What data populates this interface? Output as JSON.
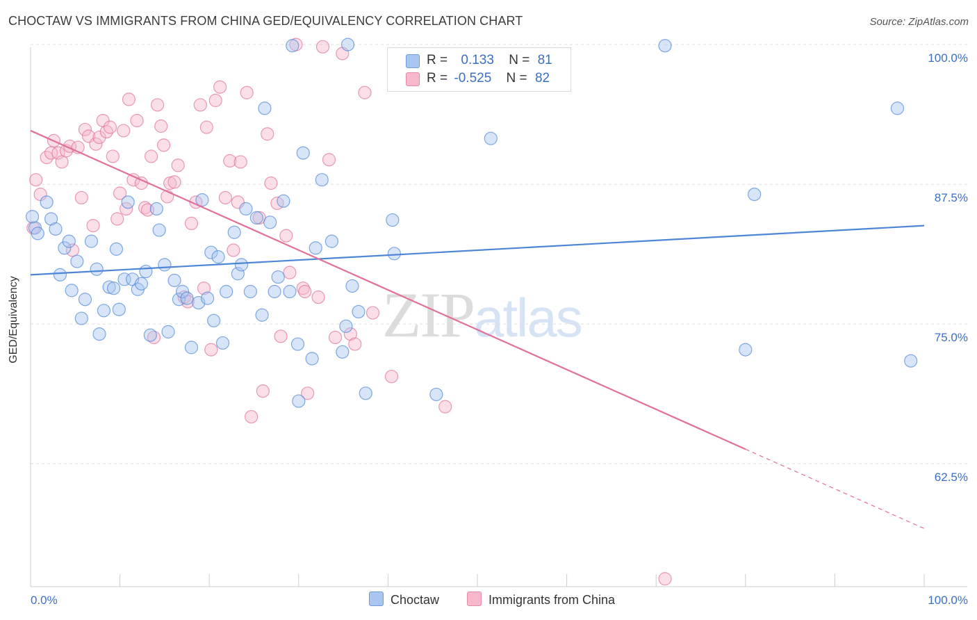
{
  "header": {
    "title": "CHOCTAW VS IMMIGRANTS FROM CHINA GED/EQUIVALENCY CORRELATION CHART",
    "source": "Source: ZipAtlas.com"
  },
  "watermark": {
    "zip": "ZIP",
    "atlas": "atlas"
  },
  "legend": {
    "rows": [
      {
        "r_label": "R =",
        "r_value": "0.133",
        "n_label": "N =",
        "n_value": "81",
        "color": "#a9c6f0"
      },
      {
        "r_label": "R =",
        "r_value": "-0.525",
        "n_label": "N =",
        "n_value": "82",
        "color": "#f7b8cb"
      }
    ]
  },
  "bottom_legend": [
    {
      "label": "Choctaw",
      "color": "#a9c6f0"
    },
    {
      "label": "Immigrants from China",
      "color": "#f7b8cb"
    }
  ],
  "chart_data": {
    "type": "scatter",
    "title": "CHOCTAW VS IMMIGRANTS FROM CHINA GED/EQUIVALENCY CORRELATION CHART",
    "xlabel": "",
    "ylabel": "GED/Equivalency",
    "xlim": [
      0,
      100
    ],
    "ylim": [
      51.5,
      101.5
    ],
    "x_tick_labels": [
      "0.0%",
      "100.0%"
    ],
    "y_ticks": [
      62.5,
      75.0,
      87.5,
      100.0
    ],
    "y_tick_labels": [
      "62.5%",
      "75.0%",
      "87.5%",
      "100.0%"
    ],
    "grid": "horizontal dashed",
    "legend_position": "top-center",
    "series": [
      {
        "name": "Choctaw",
        "color": "#4d86d6",
        "fill": "#a9c6f0",
        "trend": {
          "x": [
            0,
            100
          ],
          "y": [
            79.4,
            83.8
          ],
          "style": "solid"
        },
        "points": [
          [
            0.5,
            83.6
          ],
          [
            0.8,
            83.1
          ],
          [
            1.8,
            85.9
          ],
          [
            2.3,
            84.4
          ],
          [
            2.8,
            83.5
          ],
          [
            3.3,
            79.4
          ],
          [
            3.8,
            81.8
          ],
          [
            4.3,
            82.4
          ],
          [
            4.6,
            78.0
          ],
          [
            5.2,
            80.6
          ],
          [
            5.7,
            75.5
          ],
          [
            6.1,
            77.2
          ],
          [
            6.8,
            82.4
          ],
          [
            7.4,
            79.9
          ],
          [
            7.7,
            74.1
          ],
          [
            8.2,
            76.2
          ],
          [
            8.8,
            78.3
          ],
          [
            9.3,
            78.2
          ],
          [
            9.6,
            81.7
          ],
          [
            9.9,
            76.3
          ],
          [
            10.5,
            79.0
          ],
          [
            10.9,
            85.9
          ],
          [
            11.4,
            79.0
          ],
          [
            12.0,
            78.1
          ],
          [
            12.4,
            78.6
          ],
          [
            12.9,
            79.7
          ],
          [
            13.4,
            74.0
          ],
          [
            14.1,
            85.3
          ],
          [
            14.4,
            83.4
          ],
          [
            15.0,
            80.3
          ],
          [
            15.4,
            74.3
          ],
          [
            16.1,
            78.9
          ],
          [
            16.6,
            77.2
          ],
          [
            17.0,
            77.9
          ],
          [
            17.5,
            77.3
          ],
          [
            18.0,
            72.9
          ],
          [
            18.8,
            76.9
          ],
          [
            19.2,
            86.1
          ],
          [
            19.8,
            77.3
          ],
          [
            20.2,
            81.4
          ],
          [
            20.5,
            75.3
          ],
          [
            21.0,
            81.0
          ],
          [
            21.5,
            73.3
          ],
          [
            21.9,
            77.9
          ],
          [
            22.8,
            83.2
          ],
          [
            23.2,
            79.5
          ],
          [
            23.6,
            80.3
          ],
          [
            24.1,
            85.3
          ],
          [
            24.6,
            77.9
          ],
          [
            25.3,
            84.5
          ],
          [
            25.9,
            75.8
          ],
          [
            26.2,
            94.3
          ],
          [
            26.8,
            84.1
          ],
          [
            27.3,
            77.9
          ],
          [
            27.7,
            79.2
          ],
          [
            28.3,
            86.0
          ],
          [
            29.0,
            77.9
          ],
          [
            29.3,
            99.9
          ],
          [
            29.9,
            73.2
          ],
          [
            30.5,
            90.3
          ],
          [
            31.5,
            71.9
          ],
          [
            31.9,
            81.8
          ],
          [
            32.6,
            87.9
          ],
          [
            33.7,
            82.4
          ],
          [
            34.9,
            72.5
          ],
          [
            35.3,
            74.8
          ],
          [
            36.0,
            78.4
          ],
          [
            36.7,
            76.1
          ],
          [
            37.5,
            68.8
          ],
          [
            40.5,
            84.3
          ],
          [
            40.7,
            81.3
          ],
          [
            45.4,
            68.7
          ],
          [
            51.5,
            91.6
          ],
          [
            71.0,
            99.9
          ],
          [
            80.0,
            72.7
          ],
          [
            81.0,
            86.6
          ],
          [
            97.0,
            94.3
          ],
          [
            98.5,
            71.7
          ],
          [
            0.2,
            84.6
          ],
          [
            30.0,
            68.1
          ],
          [
            35.5,
            100.0
          ]
        ]
      },
      {
        "name": "Immigrants from China",
        "color": "#e0709a",
        "fill": "#f7b8cb",
        "trend": {
          "x": [
            0,
            80
          ],
          "y": [
            92.3,
            63.8
          ],
          "style": "solid"
        },
        "trend_extension": {
          "x": [
            80,
            100
          ],
          "y": [
            63.8,
            56.7
          ],
          "style": "dashed"
        },
        "points": [
          [
            0.3,
            83.6
          ],
          [
            0.6,
            87.9
          ],
          [
            1.1,
            86.6
          ],
          [
            1.8,
            89.9
          ],
          [
            2.3,
            90.3
          ],
          [
            2.6,
            91.4
          ],
          [
            3.1,
            90.3
          ],
          [
            3.5,
            89.5
          ],
          [
            4.0,
            90.5
          ],
          [
            4.4,
            90.9
          ],
          [
            4.7,
            81.6
          ],
          [
            5.3,
            90.8
          ],
          [
            5.7,
            86.3
          ],
          [
            6.1,
            92.4
          ],
          [
            6.5,
            91.8
          ],
          [
            7.0,
            83.8
          ],
          [
            7.3,
            91.1
          ],
          [
            7.7,
            91.7
          ],
          [
            8.1,
            93.2
          ],
          [
            8.5,
            92.2
          ],
          [
            8.9,
            92.6
          ],
          [
            9.2,
            90.0
          ],
          [
            9.7,
            84.4
          ],
          [
            10.0,
            86.7
          ],
          [
            10.4,
            92.3
          ],
          [
            10.7,
            85.3
          ],
          [
            11.0,
            95.1
          ],
          [
            11.5,
            87.9
          ],
          [
            11.9,
            93.2
          ],
          [
            12.4,
            87.6
          ],
          [
            12.8,
            85.4
          ],
          [
            13.1,
            85.2
          ],
          [
            13.5,
            90.0
          ],
          [
            13.8,
            73.8
          ],
          [
            14.2,
            94.6
          ],
          [
            14.6,
            92.7
          ],
          [
            14.9,
            91.0
          ],
          [
            15.3,
            86.4
          ],
          [
            15.6,
            87.6
          ],
          [
            16.1,
            87.7
          ],
          [
            16.5,
            89.2
          ],
          [
            17.2,
            77.4
          ],
          [
            17.6,
            77.0
          ],
          [
            18.0,
            84.0
          ],
          [
            18.5,
            85.9
          ],
          [
            19.0,
            94.6
          ],
          [
            19.4,
            78.2
          ],
          [
            19.7,
            92.6
          ],
          [
            20.2,
            72.7
          ],
          [
            20.7,
            95.0
          ],
          [
            21.2,
            96.2
          ],
          [
            21.8,
            86.3
          ],
          [
            22.3,
            89.6
          ],
          [
            22.7,
            81.6
          ],
          [
            23.2,
            85.9
          ],
          [
            23.5,
            89.5
          ],
          [
            24.2,
            95.7
          ],
          [
            24.7,
            66.7
          ],
          [
            25.6,
            84.5
          ],
          [
            26.0,
            69.0
          ],
          [
            26.5,
            92.0
          ],
          [
            26.9,
            87.6
          ],
          [
            27.6,
            85.8
          ],
          [
            28.0,
            73.9
          ],
          [
            28.6,
            82.9
          ],
          [
            29.0,
            79.6
          ],
          [
            29.7,
            100.0
          ],
          [
            30.5,
            78.2
          ],
          [
            30.7,
            77.9
          ],
          [
            31.0,
            68.8
          ],
          [
            32.2,
            77.4
          ],
          [
            32.7,
            99.8
          ],
          [
            33.4,
            89.7
          ],
          [
            34.1,
            73.8
          ],
          [
            34.9,
            99.2
          ],
          [
            35.8,
            74.1
          ],
          [
            36.3,
            73.2
          ],
          [
            37.4,
            95.7
          ],
          [
            38.3,
            76.0
          ],
          [
            40.4,
            70.3
          ],
          [
            46.4,
            67.6
          ],
          [
            71.0,
            52.2
          ]
        ]
      }
    ]
  }
}
